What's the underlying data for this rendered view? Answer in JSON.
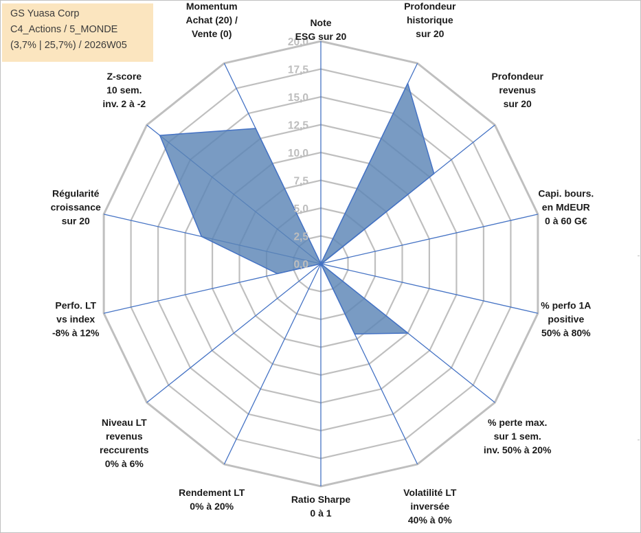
{
  "info_box": {
    "line1": "GS Yuasa Corp",
    "line2": "C4_Actions / 5_MONDE",
    "line3": "(3,7% | 25,7%) / 2026W05"
  },
  "chart_data": {
    "type": "radar",
    "title": "GS Yuasa Corp",
    "r_min": 0,
    "r_max": 20,
    "r_step": 2.5,
    "tick_labels": [
      "0,0",
      "2,5",
      "5,0",
      "7,5",
      "10,0",
      "12,5",
      "15,0",
      "17,5",
      "20,0"
    ],
    "axes": [
      {
        "label": [
          "Note",
          "ESG sur 20"
        ],
        "value": 0
      },
      {
        "label": [
          "Profondeur",
          "historique",
          "sur 20"
        ],
        "value": 18.0
      },
      {
        "label": [
          "Profondeur",
          "revenus",
          "sur 20"
        ],
        "value": 13.0
      },
      {
        "label": [
          "Capi. bours.",
          "en MdEUR",
          "0 à 60 G€"
        ],
        "value": 0.1
      },
      {
        "label": [
          "% perfo 1A",
          "positive",
          "50% à 80%"
        ],
        "value": 0
      },
      {
        "label": [
          "% perte max.",
          "sur 1 sem.",
          "inv. 50% à 20%"
        ],
        "value": 10.0
      },
      {
        "label": [
          "Volatilité LT",
          "inversée",
          "40% à 0%"
        ],
        "value": 7.0
      },
      {
        "label": [
          "Ratio Sharpe",
          "0 à 1"
        ],
        "value": 0
      },
      {
        "label": [
          "Rendement LT",
          "0% à 20%"
        ],
        "value": 0
      },
      {
        "label": [
          "Niveau LT",
          "revenus",
          "reccurents",
          "0% à 6%"
        ],
        "value": 0
      },
      {
        "label": [
          "Perfo. LT",
          "vs index",
          "-8% à 12%"
        ],
        "value": 4.0
      },
      {
        "label": [
          "Régularité",
          "croissance",
          "sur 20"
        ],
        "value": 11.0
      },
      {
        "label": [
          "Z-score",
          "10 sem.",
          "inv. 2 à -2"
        ],
        "value": 18.5
      },
      {
        "label": [
          "Momentum",
          "Achat (20) /",
          "Vente (0)"
        ],
        "value": 13.5
      }
    ],
    "series": [
      {
        "name": "GS Yuasa Corp",
        "color": "#5b85b6"
      }
    ],
    "grid": true,
    "colors": {
      "grid": "#bfbfbf",
      "spokes": "#4472c4",
      "fill": "#5b85b6",
      "outline": "#4472c4",
      "ticks": "#bdbdbd"
    }
  }
}
